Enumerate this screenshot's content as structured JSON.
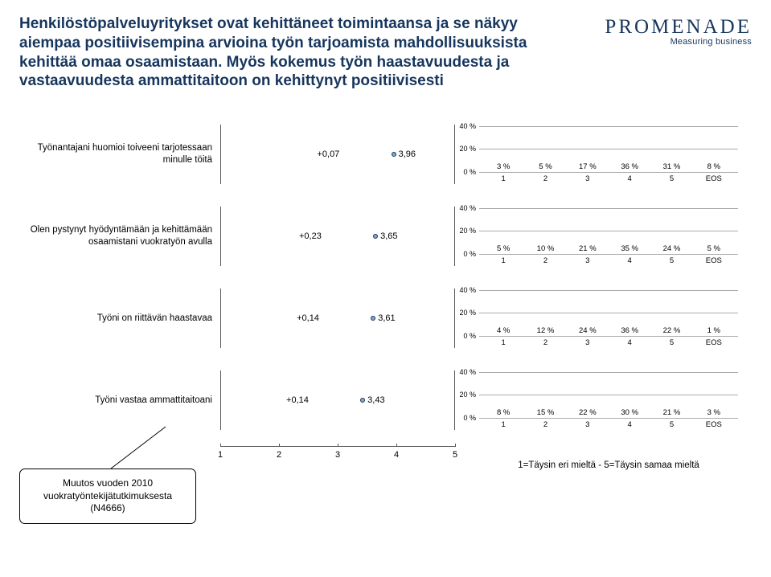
{
  "title": "Henkilöstöpalveluyritykset ovat kehittäneet toimintaansa ja se näkyy aiempaa positiivisempina arvioina työn tarjoamista mahdollisuuksista kehittää omaa osaamistaan. Myös kokemus työn haastavuudesta ja vastaavuudesta ammattitaitoon on kehittynyt positiivisesti",
  "logo": {
    "name": "PROMENADE",
    "tag": "Measuring business"
  },
  "mean_axis": {
    "min": 1,
    "max": 5,
    "ticks": [
      1,
      2,
      3,
      4,
      5
    ]
  },
  "dist_y": {
    "max": 40,
    "ticks": [
      0,
      20,
      40
    ]
  },
  "dist_x": [
    "1",
    "2",
    "3",
    "4",
    "5",
    "EOS"
  ],
  "bar_colors": [
    "#cdb79e",
    "#d9c6b0",
    "#a5b8a5",
    "#6b9e6b",
    "#8fbc8f",
    "#d3d3d3"
  ],
  "background_color": "#ffffff",
  "bubble_fill": "#87a7c9",
  "bubble_stroke": "#17365d",
  "rows": [
    {
      "label": "Työnantajani huomioi toiveeni tarjotessaan minulle töitä",
      "delta": "+0,07",
      "mean": 3.96,
      "mean_str": "3,96",
      "dist": [
        3,
        5,
        17,
        36,
        31,
        8
      ]
    },
    {
      "label": "Olen pystynyt hyödyntämään ja kehittämään osaamistani vuokratyön avulla",
      "delta": "+0,23",
      "mean": 3.65,
      "mean_str": "3,65",
      "dist": [
        5,
        10,
        21,
        35,
        24,
        5
      ]
    },
    {
      "label": "Työni on riittävän haastavaa",
      "delta": "+0,14",
      "mean": 3.61,
      "mean_str": "3,61",
      "dist": [
        4,
        12,
        24,
        36,
        22,
        1
      ]
    },
    {
      "label": "Työni vastaa ammattitaitoani",
      "delta": "+0,14",
      "mean": 3.43,
      "mean_str": "3,43",
      "dist": [
        8,
        15,
        22,
        30,
        21,
        3
      ]
    }
  ],
  "scale_legend": "1=Täysin eri mieltä - 5=Täysin samaa mieltä",
  "callout": "Muutos vuoden 2010 vuokratyöntekijätutkimuksesta (N4666)"
}
